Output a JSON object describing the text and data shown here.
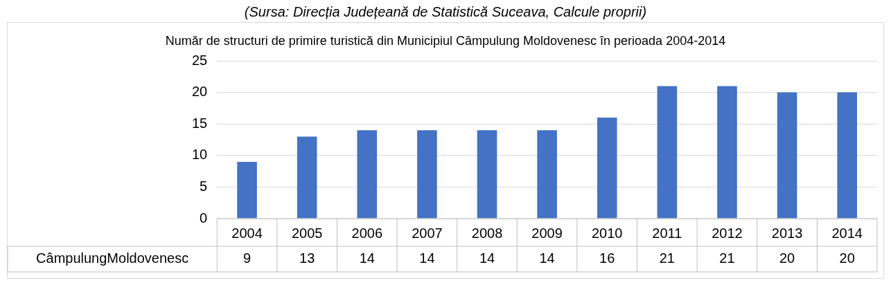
{
  "chart_data": {
    "type": "bar",
    "title": "Număr de structuri de primire turistică din Municipiul Câmpulung Moldovenesc în perioada 2004-2014",
    "annotations": [
      "(Sursa: Direcția Județeană de Statistică Suceava, Calcule proprii)"
    ],
    "categories": [
      "2004",
      "2005",
      "2006",
      "2007",
      "2008",
      "2009",
      "2010",
      "2011",
      "2012",
      "2013",
      "2014"
    ],
    "series": [
      {
        "name": "CâmpulungMoldovenesc",
        "color": "#4472c4",
        "values": [
          9,
          13,
          14,
          14,
          14,
          14,
          16,
          21,
          21,
          20,
          20
        ]
      }
    ],
    "ylim": [
      0,
      25
    ],
    "yticks": [
      0,
      5,
      10,
      15,
      20,
      25
    ],
    "grid": "y",
    "data_labels": true,
    "legend": false
  }
}
